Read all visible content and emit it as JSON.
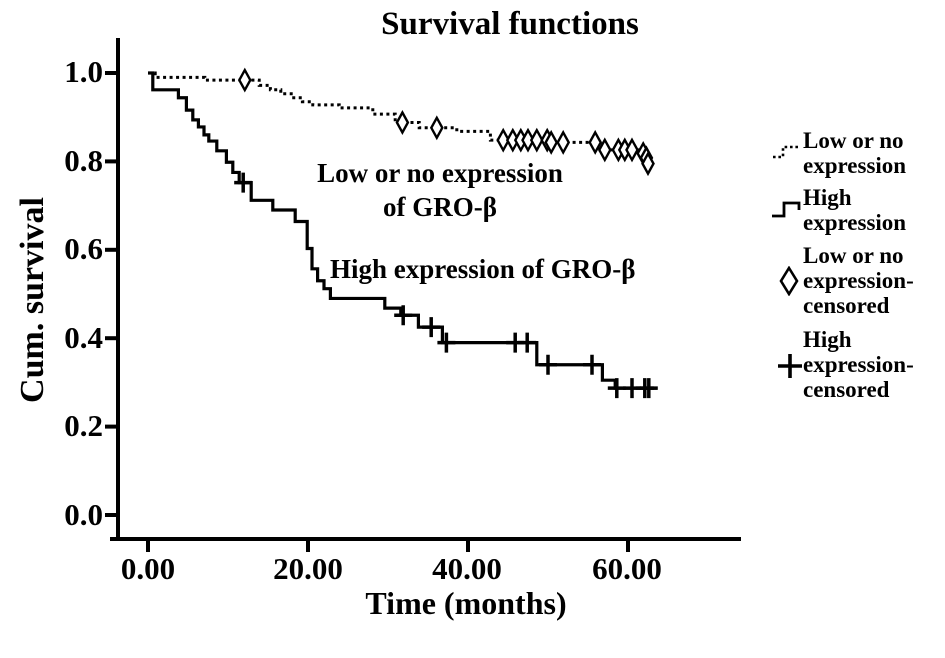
{
  "figure": {
    "title": "Survival functions",
    "y_axis_label": "Cum. survival",
    "x_axis_label": "Time  (months)"
  },
  "annotations": {
    "low_line1": "Low or no expression",
    "low_line2": "of GRO-β",
    "high": "High expression of GRO-β"
  },
  "legend": {
    "items": [
      {
        "symbol": "dotted-step-line",
        "lines": [
          "Low or no",
          "expression"
        ]
      },
      {
        "symbol": "solid-step-line",
        "lines": [
          "High",
          "expression"
        ]
      },
      {
        "symbol": "open-diamond",
        "lines": [
          "Low or no",
          "expression-",
          "censored"
        ]
      },
      {
        "symbol": "plus-cross",
        "lines": [
          "High",
          "expression-",
          "censored"
        ]
      }
    ]
  },
  "colors": {
    "line": "#000000",
    "background": "#ffffff"
  },
  "chart_data": {
    "type": "line",
    "subtype": "kaplan-meier-step",
    "title": "Survival functions",
    "xlabel": "Time (months)",
    "ylabel": "Cum. survival",
    "xlim": [
      -4.7,
      74
    ],
    "ylim": [
      0.0,
      1.06
    ],
    "grid": false,
    "legend_position": "right-outside",
    "x_ticks": [
      "0.00",
      "20.00",
      "40.00",
      "60.00"
    ],
    "x_tick_values": [
      0,
      20,
      40,
      60
    ],
    "y_ticks": [
      "1.0",
      "0.8",
      "0.6",
      "0.4",
      "0.2",
      "0.0"
    ],
    "y_tick_values": [
      1.0,
      0.8,
      0.6,
      0.4,
      0.2,
      0.0
    ],
    "series": [
      {
        "name": "Low or no expression",
        "style": "dotted",
        "censor_marker": "open-diamond",
        "steps": [
          [
            0,
            1.0
          ],
          [
            0.9,
            0.99
          ],
          [
            7.1,
            0.984
          ],
          [
            13.9,
            0.972
          ],
          [
            15.3,
            0.962
          ],
          [
            16.6,
            0.953
          ],
          [
            17.9,
            0.944
          ],
          [
            19.3,
            0.935
          ],
          [
            20.6,
            0.928
          ],
          [
            23.9,
            0.921
          ],
          [
            28.1,
            0.907
          ],
          [
            30.9,
            0.888
          ],
          [
            33.9,
            0.876
          ],
          [
            38.6,
            0.868
          ],
          [
            42.8,
            0.848
          ],
          [
            50.1,
            0.843
          ],
          [
            56.5,
            0.826
          ],
          [
            61.4,
            0.815
          ],
          [
            62.4,
            0.797
          ]
        ],
        "end_t": 63.2,
        "censored": [
          [
            12.1,
            0.984
          ],
          [
            31.8,
            0.888
          ],
          [
            36.1,
            0.876
          ],
          [
            44.4,
            0.848
          ],
          [
            45.6,
            0.848
          ],
          [
            46.6,
            0.848
          ],
          [
            47.5,
            0.848
          ],
          [
            48.6,
            0.848
          ],
          [
            49.9,
            0.848
          ],
          [
            50.4,
            0.843
          ],
          [
            51.9,
            0.843
          ],
          [
            55.9,
            0.843
          ],
          [
            57.1,
            0.826
          ],
          [
            58.8,
            0.826
          ],
          [
            59.6,
            0.826
          ],
          [
            60.5,
            0.826
          ],
          [
            61.9,
            0.818
          ],
          [
            62.3,
            0.808
          ],
          [
            62.5,
            0.795
          ]
        ]
      },
      {
        "name": "High expression",
        "style": "solid",
        "censor_marker": "plus-cross",
        "steps": [
          [
            0,
            1.0
          ],
          [
            0.6,
            0.962
          ],
          [
            3.8,
            0.944
          ],
          [
            4.8,
            0.916
          ],
          [
            5.6,
            0.894
          ],
          [
            6.3,
            0.878
          ],
          [
            7.0,
            0.86
          ],
          [
            7.6,
            0.846
          ],
          [
            8.6,
            0.824
          ],
          [
            9.8,
            0.798
          ],
          [
            10.6,
            0.775
          ],
          [
            11.4,
            0.752
          ],
          [
            12.9,
            0.712
          ],
          [
            15.6,
            0.69
          ],
          [
            18.4,
            0.664
          ],
          [
            19.9,
            0.603
          ],
          [
            20.5,
            0.557
          ],
          [
            21.2,
            0.53
          ],
          [
            22.0,
            0.512
          ],
          [
            22.8,
            0.49
          ],
          [
            29.6,
            0.468
          ],
          [
            31.6,
            0.452
          ],
          [
            33.8,
            0.425
          ],
          [
            36.8,
            0.39
          ],
          [
            48.6,
            0.34
          ],
          [
            56.8,
            0.305
          ],
          [
            58.4,
            0.287
          ]
        ],
        "end_t": 63.6,
        "censored": [
          [
            11.9,
            0.752
          ],
          [
            31.9,
            0.452
          ],
          [
            35.4,
            0.425
          ],
          [
            37.3,
            0.39
          ],
          [
            45.9,
            0.39
          ],
          [
            47.4,
            0.39
          ],
          [
            50.0,
            0.34
          ],
          [
            55.5,
            0.34
          ],
          [
            58.6,
            0.287
          ],
          [
            60.5,
            0.287
          ],
          [
            62.1,
            0.287
          ],
          [
            62.6,
            0.287
          ]
        ]
      }
    ]
  }
}
